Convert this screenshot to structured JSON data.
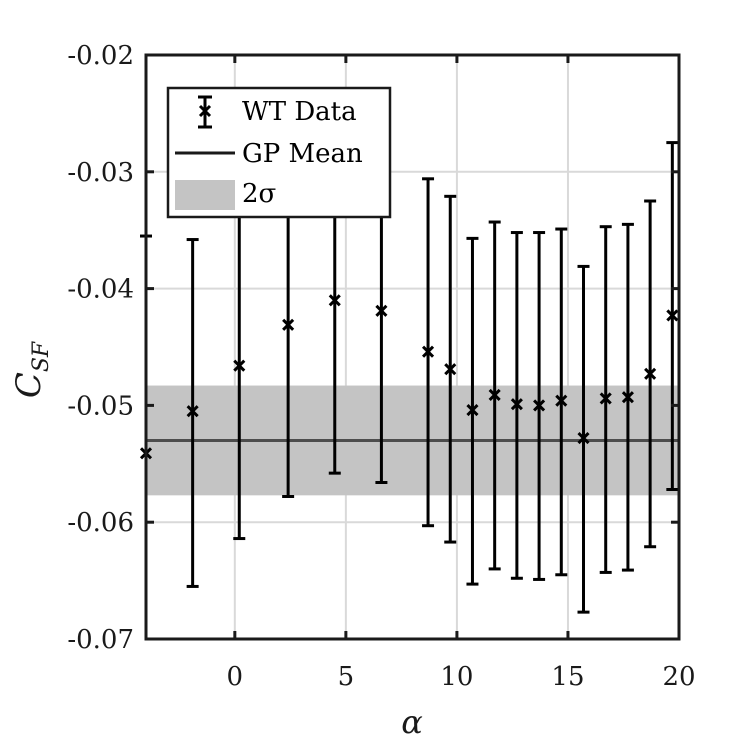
{
  "chart_data": {
    "type": "scatter",
    "xlabel": "α",
    "ylabel_main": "C",
    "ylabel_sub": "SF",
    "xlim": [
      -4,
      20
    ],
    "ylim": [
      -0.07,
      -0.02
    ],
    "xticks": [
      0,
      5,
      10,
      15,
      20
    ],
    "xtick_labels": [
      "0",
      "5",
      "10",
      "15",
      "20"
    ],
    "yticks": [
      -0.07,
      -0.06,
      -0.05,
      -0.04,
      -0.03,
      -0.02
    ],
    "ytick_labels": [
      "-0.07",
      "-0.06",
      "-0.05",
      "-0.04",
      "-0.03",
      "-0.02"
    ],
    "grid": true,
    "legend": {
      "position": "top-left",
      "entries": [
        {
          "label": "WT Data",
          "kind": "errorbar-marker"
        },
        {
          "label": "GP Mean",
          "kind": "line"
        },
        {
          "label": "2σ",
          "kind": "patch"
        }
      ]
    },
    "wt_data": {
      "name": "WT Data",
      "points": [
        {
          "x": -4.0,
          "y": -0.0541,
          "lower": -0.0725,
          "upper": -0.0355
        },
        {
          "x": -1.9,
          "y": -0.0505,
          "lower": -0.0655,
          "upper": -0.0358
        },
        {
          "x": 0.2,
          "y": -0.0466,
          "lower": -0.0614,
          "upper": -0.0318
        },
        {
          "x": 2.4,
          "y": -0.0431,
          "lower": -0.0578,
          "upper": -0.0283
        },
        {
          "x": 4.5,
          "y": -0.041,
          "lower": -0.0558,
          "upper": -0.0262
        },
        {
          "x": 6.6,
          "y": -0.0419,
          "lower": -0.0566,
          "upper": -0.0272
        },
        {
          "x": 8.7,
          "y": -0.0454,
          "lower": -0.0603,
          "upper": -0.0306
        },
        {
          "x": 9.7,
          "y": -0.0469,
          "lower": -0.0617,
          "upper": -0.0321
        },
        {
          "x": 10.7,
          "y": -0.0504,
          "lower": -0.0653,
          "upper": -0.0357
        },
        {
          "x": 11.7,
          "y": -0.0491,
          "lower": -0.064,
          "upper": -0.0343
        },
        {
          "x": 12.7,
          "y": -0.0499,
          "lower": -0.0648,
          "upper": -0.0352
        },
        {
          "x": 13.7,
          "y": -0.05,
          "lower": -0.0649,
          "upper": -0.0352
        },
        {
          "x": 14.7,
          "y": -0.0496,
          "lower": -0.0645,
          "upper": -0.0349
        },
        {
          "x": 15.7,
          "y": -0.0528,
          "lower": -0.0677,
          "upper": -0.0381
        },
        {
          "x": 16.7,
          "y": -0.0494,
          "lower": -0.0643,
          "upper": -0.0347
        },
        {
          "x": 17.7,
          "y": -0.0493,
          "lower": -0.0641,
          "upper": -0.0345
        },
        {
          "x": 18.7,
          "y": -0.0473,
          "lower": -0.0621,
          "upper": -0.0325
        },
        {
          "x": 19.7,
          "y": -0.0423,
          "lower": -0.0572,
          "upper": -0.0275
        }
      ]
    },
    "gp_mean": {
      "name": "GP Mean",
      "value": -0.053
    },
    "gp_band": {
      "name": "2σ",
      "lower": -0.0577,
      "upper": -0.0483
    },
    "colors": {
      "data": "#000000",
      "gp_mean": "#4d4d4d",
      "band": "#c4c4c4",
      "grid": "#d9d9d9",
      "axis": "#1a1a1a"
    }
  }
}
